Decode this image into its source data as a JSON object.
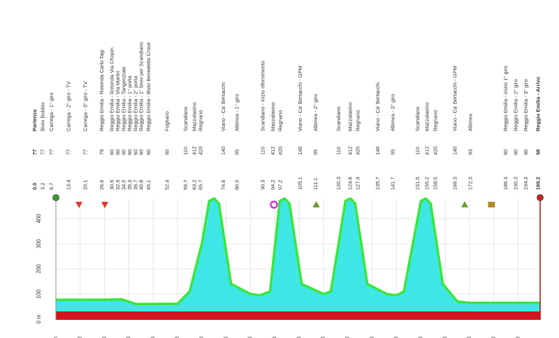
{
  "chart_data": {
    "type": "area",
    "x": [
      0,
      10,
      20,
      27,
      33,
      50,
      55,
      60,
      63,
      65,
      67,
      72,
      80,
      84,
      88,
      92,
      94,
      96,
      101,
      110,
      113,
      119,
      121,
      123,
      128,
      136,
      140,
      143,
      150,
      152,
      154,
      159,
      165,
      170,
      199
    ],
    "values": [
      77,
      77,
      77,
      79,
      60,
      61,
      110,
      300,
      470,
      480,
      460,
      140,
      100,
      95,
      110,
      470,
      480,
      460,
      140,
      100,
      110,
      470,
      480,
      460,
      140,
      100,
      95,
      110,
      470,
      480,
      460,
      140,
      70,
      65,
      65
    ],
    "color": "#39e639",
    "fill_color": "#3fe6e6",
    "xlim": [
      0,
      199
    ],
    "ylim": [
      0,
      500
    ],
    "xticks": [
      {
        "value": 0,
        "label": "0 km"
      },
      10,
      20,
      30,
      40,
      50,
      60,
      70,
      80,
      90,
      100,
      110,
      120,
      130,
      140,
      150,
      160,
      170,
      180,
      190
    ],
    "yticks": [
      {
        "value": 0,
        "label": "0 m"
      },
      100,
      200,
      300,
      400
    ],
    "grid": true,
    "markers": [
      {
        "km": 0,
        "shape": "circle",
        "color": "#2f9e2f"
      },
      {
        "km": 9.5,
        "shape": "triangle-down",
        "color": "#e03a2a"
      },
      {
        "km": 20.1,
        "shape": "triangle-down",
        "color": "#e03a2a"
      },
      {
        "km": 89.6,
        "shape": "ring",
        "color": "#d633d6"
      },
      {
        "km": 107,
        "shape": "triangle",
        "color": "#6a9a2a"
      },
      {
        "km": 168,
        "shape": "triangle",
        "color": "#6a9a2a"
      },
      {
        "km": 179,
        "shape": "square",
        "color": "#b08a2a"
      },
      {
        "km": 199,
        "shape": "circle",
        "color": "#d02020"
      }
    ]
  },
  "waypoints": [
    {
      "km": "0.0",
      "alt": "77",
      "name": "Partenza",
      "color": "#22bb22"
    },
    {
      "km": "3.2",
      "alt": "77",
      "name": "Bivio Bobbio"
    },
    {
      "km": "6.7",
      "alt": "77",
      "name": "Carrega - 1° giro"
    },
    {
      "km": "13.4",
      "alt": "77",
      "name": "Carrega - 2° giro - TV"
    },
    {
      "km": "20.1",
      "alt": "77",
      "name": "Carrega - 3° giro - TV"
    },
    {
      "km": "26.6",
      "alt": "79",
      "name": "Reggio Emilia - Rotonda Carlo Tagi"
    },
    {
      "km": "30.6",
      "alt": "60",
      "name": "Reggio Emilia - Rotonda Via Chopin"
    },
    {
      "km": "32.5",
      "alt": "60",
      "name": "Reggio Emilia - Via Martiri"
    },
    {
      "km": "34.5",
      "alt": "60",
      "name": "Reggio Emilia - Tangenziale"
    },
    {
      "km": "35.3",
      "alt": "60",
      "name": "Reggio Emilia - 1° porta"
    },
    {
      "km": "36.7",
      "alt": "60",
      "name": "Reggio Emilia - 2° porta"
    },
    {
      "km": "40.8",
      "alt": "60",
      "name": "Reggio Emilia - 1° bivio per Scandiano"
    },
    {
      "km": "45.1",
      "alt": "60",
      "name": "Reggio Emilia - Bivio Benedetto Croce"
    },
    {
      "km": "52.4",
      "alt": "60",
      "name": "Fogliano"
    },
    {
      "km": "59.7",
      "alt": "110",
      "name": "Scandiano"
    },
    {
      "km": "63.2",
      "alt": "412",
      "name": "Mazzalasino"
    },
    {
      "km": "65.7",
      "alt": "420",
      "name": "Regnano"
    },
    {
      "km": "74.6",
      "alt": "140",
      "name": "Viano - Ca' Bertacchi"
    },
    {
      "km": "80.0",
      "alt": "95",
      "name": "Albinea - 1° giro"
    },
    {
      "km": "90.3",
      "alt": "110",
      "name": "Scandiano - inizio rifornimento"
    },
    {
      "km": "94.2",
      "alt": "412",
      "name": "Mazzalasino"
    },
    {
      "km": "97.2",
      "alt": "420",
      "name": "Regnano"
    },
    {
      "km": "105.1",
      "alt": "140",
      "name": "Viano - Ca' Bertacchi - GPM"
    },
    {
      "km": "111.1",
      "alt": "95",
      "name": "Albinea - 2° giro"
    },
    {
      "km": "120.3",
      "alt": "110",
      "name": "Scandiano"
    },
    {
      "km": "124.8",
      "alt": "412",
      "name": "Mazzalasino"
    },
    {
      "km": "127.9",
      "alt": "420",
      "name": "Regnano"
    },
    {
      "km": "135.7",
      "alt": "140",
      "name": "Viano - Ca' Bertacchi"
    },
    {
      "km": "141.7",
      "alt": "95",
      "name": "Albinea - 3° giro"
    },
    {
      "km": "151.5",
      "alt": "110",
      "name": "Scandiano"
    },
    {
      "km": "155.2",
      "alt": "412",
      "name": "Mazzalasino"
    },
    {
      "km": "158.5",
      "alt": "420",
      "name": "Regnano"
    },
    {
      "km": "166.3",
      "alt": "140",
      "name": "Viano - Ca' Bertacchi - GPM"
    },
    {
      "km": "172.3",
      "alt": "93",
      "name": "Albinea"
    },
    {
      "km": "186.3",
      "alt": "60",
      "name": "Reggio Emilia - inizio 1° giro"
    },
    {
      "km": "190.3",
      "alt": "60",
      "name": "Reggio Emilia - 2° giro"
    },
    {
      "km": "194.3",
      "alt": "60",
      "name": "Reggio Emilia - 3° giro"
    },
    {
      "km": "199.2",
      "alt": "58",
      "name": "Reggio Emilia - Arrivo",
      "color": "#e02020"
    }
  ]
}
